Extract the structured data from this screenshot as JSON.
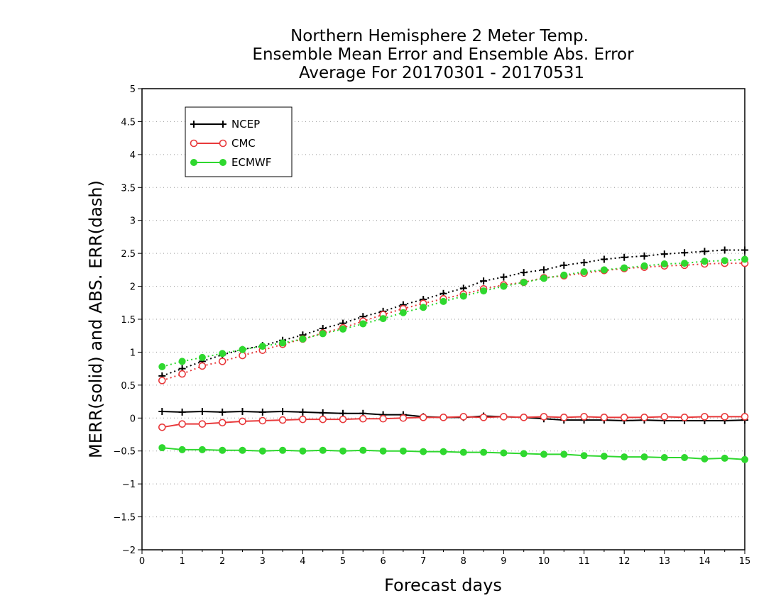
{
  "chart_data": {
    "type": "line",
    "title": [
      "Northern Hemisphere 2 Meter Temp.",
      "Ensemble Mean Error and Ensemble Abs. Error",
      "Average For 20170301 - 20170531"
    ],
    "xlabel": "Forecast days",
    "ylabel": "MERR(solid) and ABS. ERR(dash)",
    "xlim": [
      0,
      15
    ],
    "ylim": [
      -2,
      5
    ],
    "x_ticks": [
      "0",
      "1",
      "2",
      "3",
      "4",
      "5",
      "6",
      "7",
      "8",
      "9",
      "10",
      "11",
      "12",
      "13",
      "14",
      "15"
    ],
    "y_ticks": [
      "−2",
      "−1.5",
      "−1",
      "−0.5",
      "0",
      "0.5",
      "1",
      "1.5",
      "2",
      "2.5",
      "3",
      "3.5",
      "4",
      "4.5",
      "5"
    ],
    "y_tick_values": [
      -2,
      -1.5,
      -1,
      -0.5,
      0,
      0.5,
      1,
      1.5,
      2,
      2.5,
      3,
      3.5,
      4,
      4.5,
      5
    ],
    "grid": "horizontal dotted",
    "legend_position": "top-left",
    "x": [
      0.5,
      1,
      1.5,
      2,
      2.5,
      3,
      3.5,
      4,
      4.5,
      5,
      5.5,
      6,
      6.5,
      7,
      7.5,
      8,
      8.5,
      9,
      9.5,
      10,
      10.5,
      11,
      11.5,
      12,
      12.5,
      13,
      13.5,
      14,
      14.5,
      15
    ],
    "series": [
      {
        "name": "NCEP",
        "color": "#000000",
        "marker": "plus",
        "mean_error": [
          0.1,
          0.09,
          0.1,
          0.09,
          0.1,
          0.09,
          0.1,
          0.09,
          0.08,
          0.07,
          0.07,
          0.05,
          0.05,
          0.02,
          0.01,
          0.01,
          0.03,
          0.02,
          0.01,
          -0.01,
          -0.03,
          -0.03,
          -0.03,
          -0.04,
          -0.03,
          -0.04,
          -0.04,
          -0.04,
          -0.04,
          -0.03
        ],
        "abs_error": [
          0.64,
          0.75,
          0.86,
          0.96,
          1.04,
          1.1,
          1.18,
          1.26,
          1.36,
          1.44,
          1.54,
          1.62,
          1.72,
          1.8,
          1.89,
          1.97,
          2.08,
          2.14,
          2.21,
          2.25,
          2.32,
          2.36,
          2.41,
          2.44,
          2.46,
          2.49,
          2.51,
          2.53,
          2.55,
          2.55
        ]
      },
      {
        "name": "CMC",
        "color": "#e8393b",
        "marker": "open-circle",
        "mean_error": [
          -0.14,
          -0.09,
          -0.09,
          -0.07,
          -0.05,
          -0.04,
          -0.03,
          -0.02,
          -0.02,
          -0.02,
          -0.01,
          -0.01,
          0.0,
          0.01,
          0.01,
          0.02,
          0.01,
          0.02,
          0.01,
          0.02,
          0.01,
          0.02,
          0.01,
          0.01,
          0.01,
          0.02,
          0.01,
          0.02,
          0.02,
          0.02
        ],
        "abs_error": [
          0.57,
          0.67,
          0.79,
          0.86,
          0.95,
          1.03,
          1.12,
          1.2,
          1.29,
          1.37,
          1.47,
          1.57,
          1.66,
          1.74,
          1.81,
          1.88,
          1.96,
          2.02,
          2.06,
          2.13,
          2.16,
          2.2,
          2.24,
          2.27,
          2.29,
          2.31,
          2.32,
          2.34,
          2.35,
          2.35
        ]
      },
      {
        "name": "ECMWF",
        "color": "#2fd82f",
        "marker": "filled-circle",
        "mean_error": [
          -0.45,
          -0.48,
          -0.48,
          -0.49,
          -0.49,
          -0.5,
          -0.49,
          -0.5,
          -0.49,
          -0.5,
          -0.49,
          -0.5,
          -0.5,
          -0.51,
          -0.51,
          -0.52,
          -0.52,
          -0.53,
          -0.54,
          -0.55,
          -0.55,
          -0.57,
          -0.58,
          -0.59,
          -0.59,
          -0.6,
          -0.6,
          -0.62,
          -0.61,
          -0.63
        ],
        "abs_error": [
          0.78,
          0.86,
          0.92,
          0.98,
          1.04,
          1.09,
          1.14,
          1.2,
          1.28,
          1.35,
          1.43,
          1.51,
          1.6,
          1.68,
          1.77,
          1.85,
          1.93,
          2.0,
          2.06,
          2.12,
          2.17,
          2.22,
          2.25,
          2.28,
          2.31,
          2.34,
          2.35,
          2.38,
          2.39,
          2.41
        ]
      }
    ]
  }
}
